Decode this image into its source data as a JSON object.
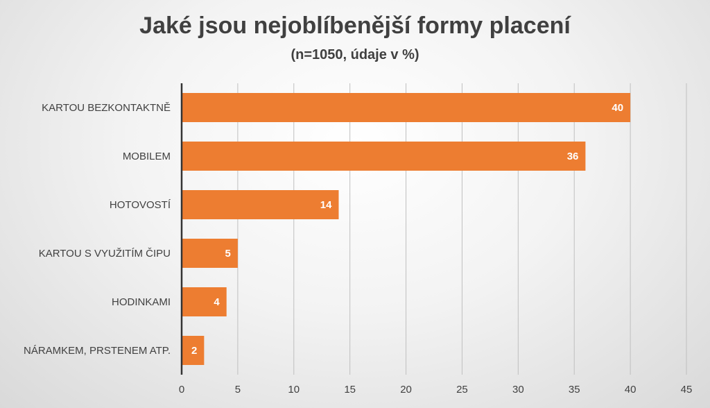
{
  "chart_data": {
    "type": "bar",
    "orientation": "horizontal",
    "title": "Jaké jsou nejoblíbenější formy placení",
    "subtitle": "(n=1050, údaje v %)",
    "categories": [
      "KARTOU BEZKONTAKTNĚ",
      "MOBILEM",
      "HOTOVOSTÍ",
      "KARTOU S VYUŽITÍM ČIPU",
      "HODINKAMI",
      "NÁRAMKEM, PRSTENEM ATP."
    ],
    "values": [
      40,
      36,
      14,
      5,
      4,
      2
    ],
    "xlim": [
      0,
      45
    ],
    "xticks": [
      0,
      5,
      10,
      15,
      20,
      25,
      30,
      35,
      40,
      45
    ],
    "grid": true,
    "bar_color": "#ed7d31",
    "legend": "none"
  }
}
